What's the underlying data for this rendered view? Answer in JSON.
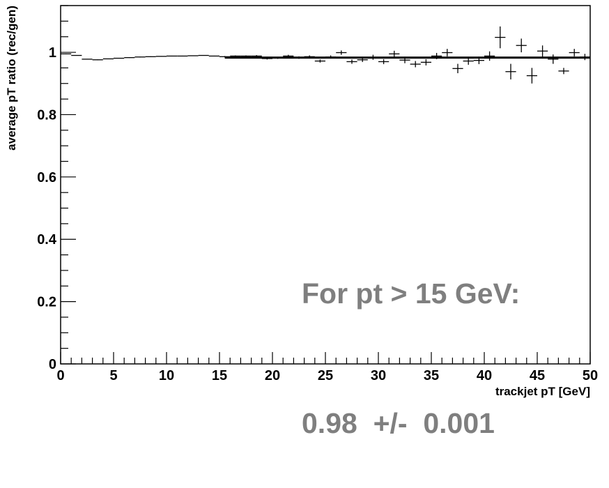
{
  "chart_data": {
    "type": "scatter",
    "title": "",
    "xlabel": "trackjet pT [GeV]",
    "ylabel": "average pT ratio (rec/gen)",
    "xlim": [
      0,
      50
    ],
    "ylim": [
      0,
      1.15
    ],
    "x_ticks": [
      "0",
      "5",
      "10",
      "15",
      "20",
      "25",
      "30",
      "35",
      "40",
      "45",
      "50"
    ],
    "y_ticks": [
      "0",
      "0.2",
      "0.4",
      "0.6",
      "0.8",
      "1"
    ],
    "grid": false,
    "series": [
      {
        "style": "points-with-errorbars",
        "x": [
          0.5,
          1.5,
          2.5,
          3.5,
          4.5,
          5.5,
          6.5,
          7.5,
          8.5,
          9.5,
          10.5,
          11.5,
          12.5,
          13.5,
          14.5,
          15.5,
          16.5,
          17.5,
          18.5,
          19.5,
          20.5,
          21.5,
          22.5,
          23.5,
          24.5,
          25.5,
          26.5,
          27.5,
          28.5,
          29.5,
          30.5,
          31.5,
          32.5,
          33.5,
          34.5,
          35.5,
          36.5,
          37.5,
          38.5,
          39.5,
          40.5,
          41.5,
          42.5,
          43.5,
          44.5,
          45.5,
          46.5,
          47.5,
          48.5,
          49.5
        ],
        "y": [
          0.995,
          0.99,
          0.978,
          0.976,
          0.979,
          0.981,
          0.983,
          0.985,
          0.986,
          0.987,
          0.988,
          0.988,
          0.989,
          0.99,
          0.988,
          0.986,
          0.988,
          0.988,
          0.988,
          0.98,
          0.982,
          0.988,
          0.983,
          0.986,
          0.972,
          0.985,
          0.999,
          0.97,
          0.976,
          0.984,
          0.97,
          0.995,
          0.975,
          0.962,
          0.968,
          0.988,
          0.999,
          0.948,
          0.972,
          0.974,
          0.988,
          1.048,
          0.938,
          1.022,
          0.925,
          1.004,
          0.978,
          0.94,
          0.999,
          0.985
        ],
        "yerr": [
          0.001,
          0.001,
          0.001,
          0.001,
          0.001,
          0.001,
          0.001,
          0.001,
          0.001,
          0.001,
          0.001,
          0.001,
          0.001,
          0.001,
          0.001,
          0.002,
          0.002,
          0.002,
          0.003,
          0.003,
          0.003,
          0.004,
          0.004,
          0.004,
          0.005,
          0.005,
          0.007,
          0.007,
          0.007,
          0.008,
          0.008,
          0.01,
          0.01,
          0.01,
          0.01,
          0.01,
          0.012,
          0.015,
          0.012,
          0.012,
          0.015,
          0.035,
          0.025,
          0.022,
          0.025,
          0.018,
          0.015,
          0.01,
          0.012,
          0.01
        ]
      },
      {
        "style": "fit-line",
        "x": [
          15.5,
          50
        ],
        "y": [
          0.983,
          0.983
        ]
      }
    ],
    "annotation": {
      "line1": "For pt > 15 GeV:",
      "line2": "0.98  +/-  0.001",
      "color": "#7f7f7f"
    }
  }
}
